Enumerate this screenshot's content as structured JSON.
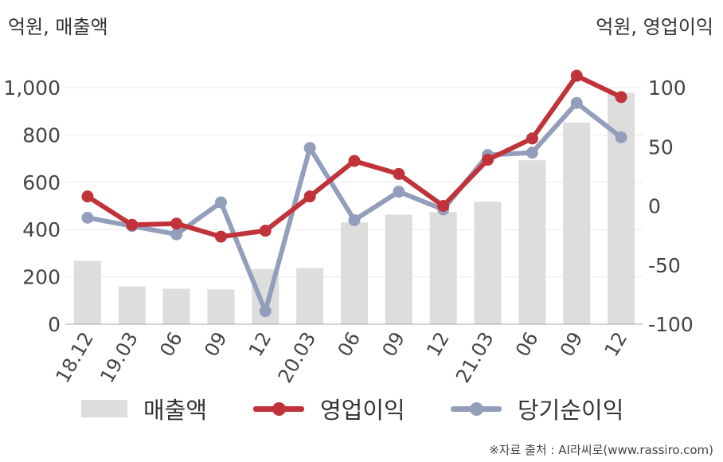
{
  "units": {
    "left": "억원, 매출액",
    "right": "억원, 영업이익"
  },
  "source": "※자료 출처 : AI라씨로(www.rassiro.com)",
  "colors": {
    "bar": "#dddddd",
    "operating_profit": "#c0333a",
    "net_income": "#939fba",
    "grid": "#e8e8e8",
    "axis": "#aaaaaa"
  },
  "chart_data": {
    "type": "bar",
    "categories": [
      "18.12",
      "19.03",
      "06",
      "09",
      "12",
      "20.03",
      "06",
      "09",
      "12",
      "21.03",
      "06",
      "09",
      "12"
    ],
    "left_axis": {
      "ylim": [
        0,
        1000
      ],
      "ticks": [
        0,
        200,
        400,
        600,
        800,
        1000
      ],
      "tick_labels": [
        "0",
        "200",
        "400",
        "600",
        "800",
        "1,000"
      ]
    },
    "right_axis": {
      "ylim": [
        -100,
        100
      ],
      "ticks": [
        -100,
        -50,
        0,
        50,
        100
      ],
      "tick_labels": [
        "-100",
        "-50",
        "0",
        "50",
        "100"
      ]
    },
    "grid": true,
    "legend_position": "bottom",
    "series": [
      {
        "name": "매출액",
        "type": "bar",
        "axis": "left",
        "values": [
          268,
          160,
          150,
          147,
          233,
          237,
          430,
          463,
          474,
          518,
          693,
          853,
          978
        ]
      },
      {
        "name": "영업이익",
        "type": "line",
        "axis": "right",
        "values": [
          8,
          -16,
          -15,
          -26,
          -21,
          8,
          38,
          27,
          0,
          39,
          57,
          110,
          92
        ]
      },
      {
        "name": "당기순이익",
        "type": "line",
        "axis": "right",
        "values": [
          -10,
          -17,
          -24,
          3,
          -89,
          49,
          -12,
          12,
          -3,
          43,
          45,
          87,
          58
        ]
      }
    ]
  }
}
